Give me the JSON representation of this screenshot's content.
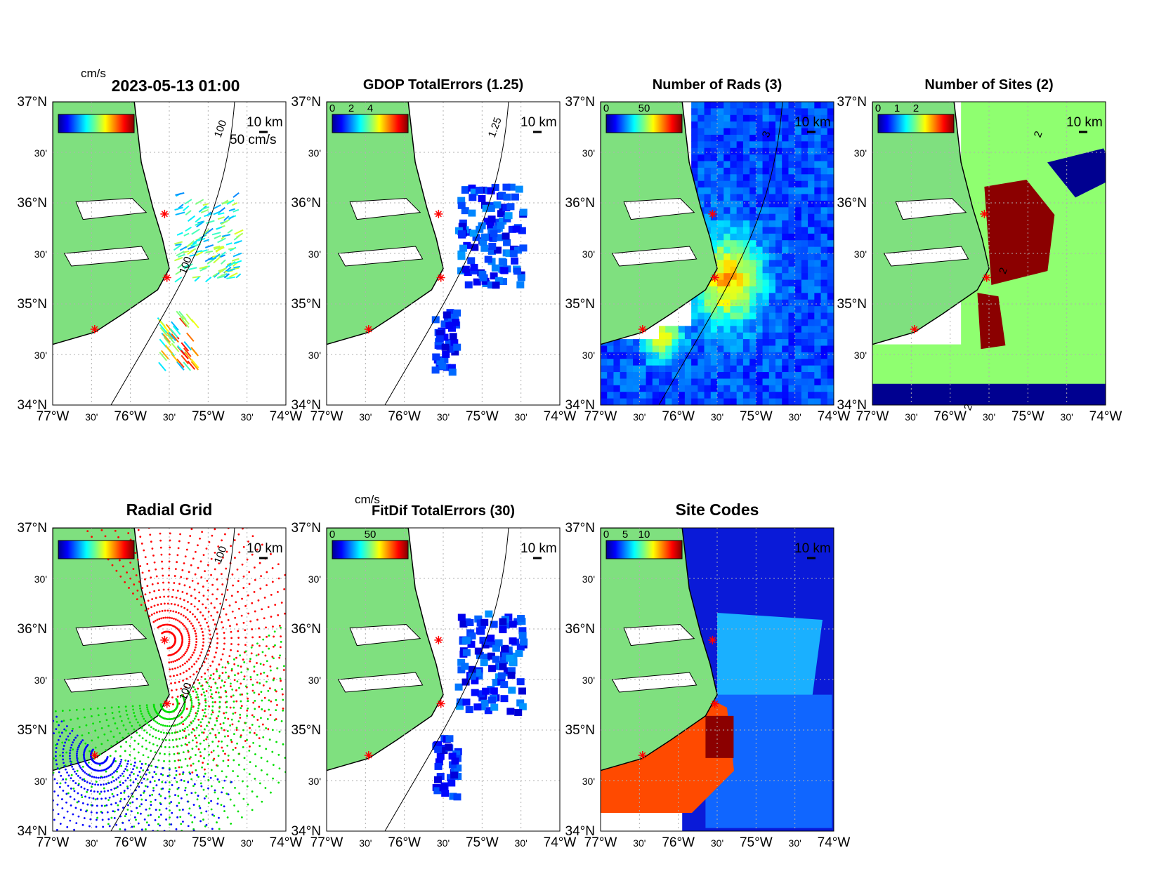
{
  "figure": {
    "timestamp": "2023-05-13 01:00",
    "colors": {
      "land": "#7fe07f",
      "coast": "#000000",
      "site_marker": "#ff0000",
      "grid": "#b0b0b0"
    },
    "panels": [
      {
        "id": "totals",
        "title": "",
        "colorbar_unit": "cm/s",
        "colorbar_ticks": [],
        "scale_label": "50 cm/s",
        "km_label": "10 km",
        "contour_labels": [
          "100",
          "100"
        ],
        "show_lon_labels": true
      },
      {
        "id": "gdop",
        "title": "GDOP TotalErrors (1.25)",
        "colorbar_unit": "",
        "colorbar_ticks": [
          "0",
          "2",
          "4"
        ],
        "km_label": "10 km",
        "contour_labels": [
          "1.25"
        ],
        "show_lon_labels": true
      },
      {
        "id": "nrads",
        "title": "Number of Rads (3)",
        "colorbar_unit": "",
        "colorbar_ticks": [
          "0",
          "50"
        ],
        "km_label": "10 km",
        "contour_labels": [
          "3"
        ],
        "show_lon_labels": true
      },
      {
        "id": "nsites",
        "title": "Number of Sites (2)",
        "colorbar_unit": "",
        "colorbar_ticks": [
          "0",
          "1",
          "2"
        ],
        "km_label": "10 km",
        "contour_labels": [
          "2",
          "2",
          "2"
        ],
        "show_lon_labels": true
      },
      {
        "id": "radgrid",
        "title": "Radial Grid",
        "colorbar_unit": "",
        "colorbar_ticks": [],
        "km_label": "10 km",
        "contour_labels": [
          "100",
          "100"
        ],
        "show_lon_labels": true
      },
      {
        "id": "fitdif",
        "title": "FitDif TotalErrors (30)",
        "colorbar_unit": "cm/s",
        "colorbar_ticks": [
          "0",
          "50"
        ],
        "km_label": "10 km",
        "contour_labels": [],
        "show_lon_labels": true
      },
      {
        "id": "sitecodes",
        "title": "Site Codes",
        "colorbar_unit": "",
        "colorbar_ticks": [
          "0",
          "5",
          "10"
        ],
        "km_label": "10 km",
        "contour_labels": [],
        "show_lon_labels": true
      }
    ],
    "axes": {
      "lat_labels": [
        "37°N",
        "30'",
        "36°N",
        "30'",
        "35°N",
        "30'",
        "34°N"
      ],
      "lon_labels": [
        "77°W",
        "30'",
        "76°W",
        "30'",
        "75°W",
        "30'",
        "74°W"
      ],
      "lat_range": [
        34,
        37
      ],
      "lon_range": [
        -77,
        -74
      ]
    }
  }
}
